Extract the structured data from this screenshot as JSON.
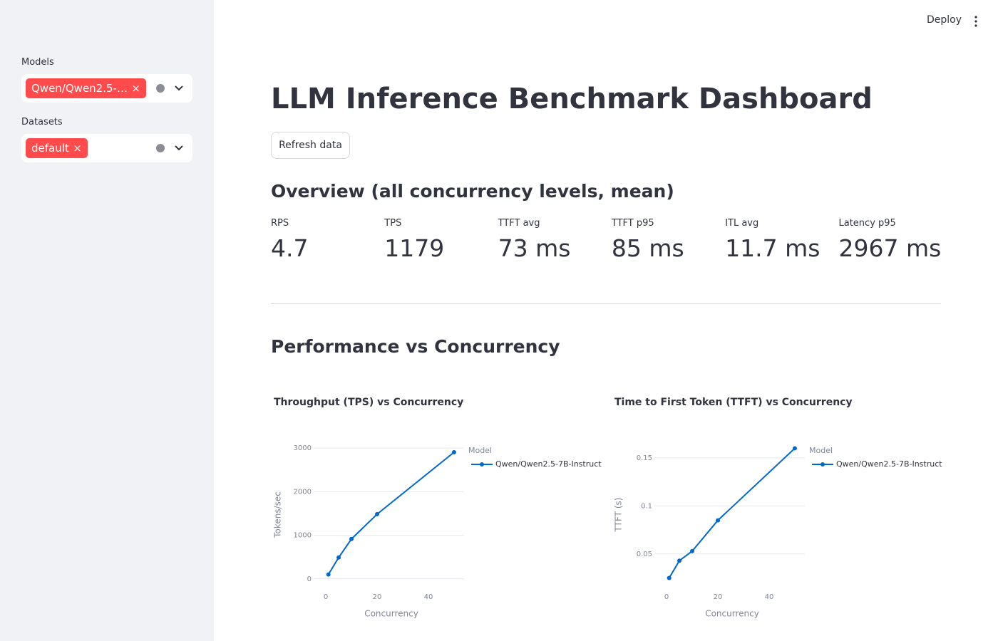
{
  "header": {
    "deploy": "Deploy"
  },
  "sidebar": {
    "filters": [
      {
        "label": "Models",
        "tags": [
          "Qwen/Qwen2.5-…"
        ]
      },
      {
        "label": "Datasets",
        "tags": [
          "default"
        ]
      }
    ]
  },
  "main": {
    "title": "LLM Inference Benchmark Dashboard",
    "refresh_button": "Refresh data",
    "overview_heading": "Overview (all concurrency levels, mean)",
    "metrics": [
      {
        "label": "RPS",
        "value": "4.7"
      },
      {
        "label": "TPS",
        "value": "1179"
      },
      {
        "label": "TTFT avg",
        "value": "73 ms"
      },
      {
        "label": "TTFT p95",
        "value": "85 ms"
      },
      {
        "label": "ITL avg",
        "value": "11.7 ms"
      },
      {
        "label": "Latency p95",
        "value": "2967 ms"
      }
    ],
    "section_heading": "Performance vs Concurrency"
  },
  "chart_data": [
    {
      "type": "line",
      "title": "Throughput (TPS) vs Concurrency",
      "x_label": "Concurrency",
      "y_label": "Tokens/sec",
      "legend_title": "Model",
      "x": [
        1,
        5,
        10,
        20,
        50
      ],
      "series": [
        {
          "name": "Qwen/Qwen2.5-7B-Instruct",
          "color": "#0068c9",
          "values": [
            100,
            490,
            915,
            1485,
            2905
          ]
        }
      ],
      "xlim": [
        -2.8,
        53.9
      ],
      "ylim": [
        -200,
        3150
      ],
      "xticks": [
        0,
        20,
        40
      ],
      "yticks": [
        0,
        1000,
        2000,
        3000
      ],
      "grid": true
    },
    {
      "type": "line",
      "title": "Time to First Token (TTFT) vs Concurrency",
      "x_label": "Concurrency",
      "y_label": "TTFT (s)",
      "legend_title": "Model",
      "x": [
        1,
        5,
        10,
        20,
        50
      ],
      "series": [
        {
          "name": "Qwen/Qwen2.5-7B-Instruct",
          "color": "#0068c9",
          "values": [
            0.025,
            0.043,
            0.053,
            0.085,
            0.16
          ]
        }
      ],
      "xlim": [
        -2.8,
        53.9
      ],
      "ylim": [
        0.015,
        0.167
      ],
      "xticks": [
        0,
        20,
        40
      ],
      "yticks": [
        0.05,
        0.1,
        0.15
      ],
      "grid": true
    }
  ]
}
